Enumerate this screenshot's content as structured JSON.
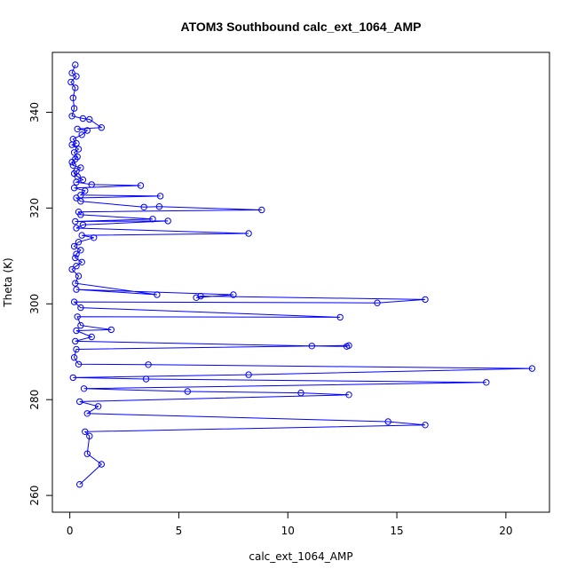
{
  "chart_data": {
    "type": "line",
    "title": "ATOM3 Southbound calc_ext_1064_AMP",
    "xlabel": "calc_ext_1064_AMP",
    "ylabel": "Theta (K)",
    "xlim": [
      -0.8,
      22.0
    ],
    "ylim": [
      256.5,
      352.5
    ],
    "x_ticks": [
      0,
      5,
      10,
      15,
      20
    ],
    "y_ticks": [
      260,
      280,
      300,
      320,
      340
    ],
    "series_color": "#0000ff",
    "markers": "open-circle",
    "series": [
      {
        "points": [
          [
            0.25,
            349.9
          ],
          [
            0.1,
            348.2
          ],
          [
            0.3,
            347.5
          ],
          [
            0.05,
            346.3
          ],
          [
            0.25,
            345.1
          ],
          [
            0.15,
            343.0
          ],
          [
            0.2,
            340.8
          ],
          [
            0.1,
            339.2
          ],
          [
            0.6,
            338.7
          ],
          [
            0.9,
            338.5
          ],
          [
            1.45,
            336.8
          ],
          [
            0.35,
            336.5
          ],
          [
            0.8,
            336.2
          ],
          [
            0.55,
            335.3
          ],
          [
            0.15,
            334.4
          ],
          [
            0.3,
            333.5
          ],
          [
            0.1,
            333.2
          ],
          [
            0.4,
            332.3
          ],
          [
            0.2,
            331.6
          ],
          [
            0.35,
            330.7
          ],
          [
            0.25,
            330.2
          ],
          [
            0.1,
            329.6
          ],
          [
            0.15,
            328.9
          ],
          [
            0.5,
            328.4
          ],
          [
            0.3,
            327.7
          ],
          [
            0.2,
            327.2
          ],
          [
            0.35,
            326.6
          ],
          [
            0.6,
            325.9
          ],
          [
            0.3,
            325.4
          ],
          [
            1.0,
            324.9
          ],
          [
            3.25,
            324.7
          ],
          [
            0.2,
            324.2
          ],
          [
            0.7,
            323.6
          ],
          [
            0.5,
            322.7
          ],
          [
            4.15,
            322.5
          ],
          [
            0.3,
            322.1
          ],
          [
            0.5,
            321.4
          ],
          [
            3.4,
            320.2
          ],
          [
            4.1,
            320.3
          ],
          [
            8.8,
            319.6
          ],
          [
            0.4,
            319.2
          ],
          [
            0.5,
            318.6
          ],
          [
            3.8,
            317.7
          ],
          [
            0.25,
            317.2
          ],
          [
            4.5,
            317.3
          ],
          [
            0.6,
            316.5
          ],
          [
            0.3,
            315.8
          ],
          [
            8.2,
            314.7
          ],
          [
            0.55,
            314.3
          ],
          [
            1.1,
            313.8
          ],
          [
            0.4,
            312.9
          ],
          [
            0.2,
            312.0
          ],
          [
            0.5,
            311.2
          ],
          [
            0.3,
            310.4
          ],
          [
            0.25,
            309.6
          ],
          [
            0.55,
            308.7
          ],
          [
            0.3,
            307.9
          ],
          [
            0.1,
            307.2
          ],
          [
            0.4,
            305.8
          ],
          [
            0.25,
            304.3
          ],
          [
            4.0,
            301.9
          ],
          [
            0.3,
            303.0
          ],
          [
            7.5,
            301.9
          ],
          [
            5.8,
            301.3
          ],
          [
            6.0,
            301.6
          ],
          [
            16.3,
            300.9
          ],
          [
            14.1,
            300.2
          ],
          [
            0.2,
            300.4
          ],
          [
            0.5,
            299.2
          ],
          [
            12.4,
            297.2
          ],
          [
            0.35,
            297.3
          ],
          [
            0.5,
            295.5
          ],
          [
            1.9,
            294.6
          ],
          [
            0.3,
            294.4
          ],
          [
            1.0,
            293.1
          ],
          [
            0.25,
            292.2
          ],
          [
            11.1,
            291.2
          ],
          [
            12.7,
            291.1
          ],
          [
            12.8,
            291.3
          ],
          [
            0.3,
            290.5
          ],
          [
            0.2,
            288.8
          ],
          [
            0.4,
            287.4
          ],
          [
            3.6,
            287.3
          ],
          [
            21.2,
            286.5
          ],
          [
            8.2,
            285.2
          ],
          [
            0.15,
            284.6
          ],
          [
            3.5,
            284.3
          ],
          [
            19.1,
            283.6
          ],
          [
            0.65,
            282.3
          ],
          [
            5.4,
            281.7
          ],
          [
            10.6,
            281.4
          ],
          [
            12.8,
            281.0
          ],
          [
            0.45,
            279.6
          ],
          [
            1.3,
            278.6
          ],
          [
            0.8,
            277.1
          ],
          [
            14.6,
            275.4
          ],
          [
            16.3,
            274.7
          ],
          [
            0.7,
            273.3
          ],
          [
            0.9,
            272.4
          ],
          [
            0.8,
            268.7
          ],
          [
            1.45,
            266.5
          ],
          [
            0.45,
            262.3
          ]
        ]
      }
    ]
  }
}
